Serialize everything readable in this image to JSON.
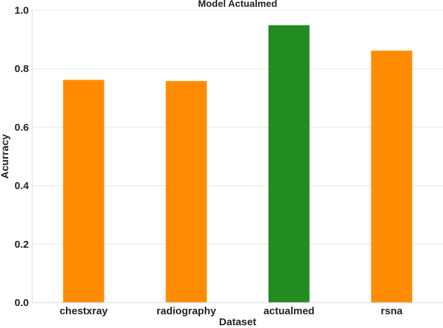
{
  "chart_data": {
    "type": "bar",
    "title": "Model Actualmed",
    "xlabel": "Dataset",
    "ylabel": "Acurracy",
    "categories": [
      "chestxray",
      "radiography",
      "actualmed",
      "rsna"
    ],
    "values": [
      0.762,
      0.758,
      0.949,
      0.862
    ],
    "colors": [
      "#ff8c00",
      "#ff8c00",
      "#228b22",
      "#ff8c00"
    ],
    "ylim": [
      0,
      1.0
    ],
    "yticks": [
      "0.0",
      "0.2",
      "0.4",
      "0.6",
      "0.8",
      "1.0"
    ],
    "grid": true
  }
}
